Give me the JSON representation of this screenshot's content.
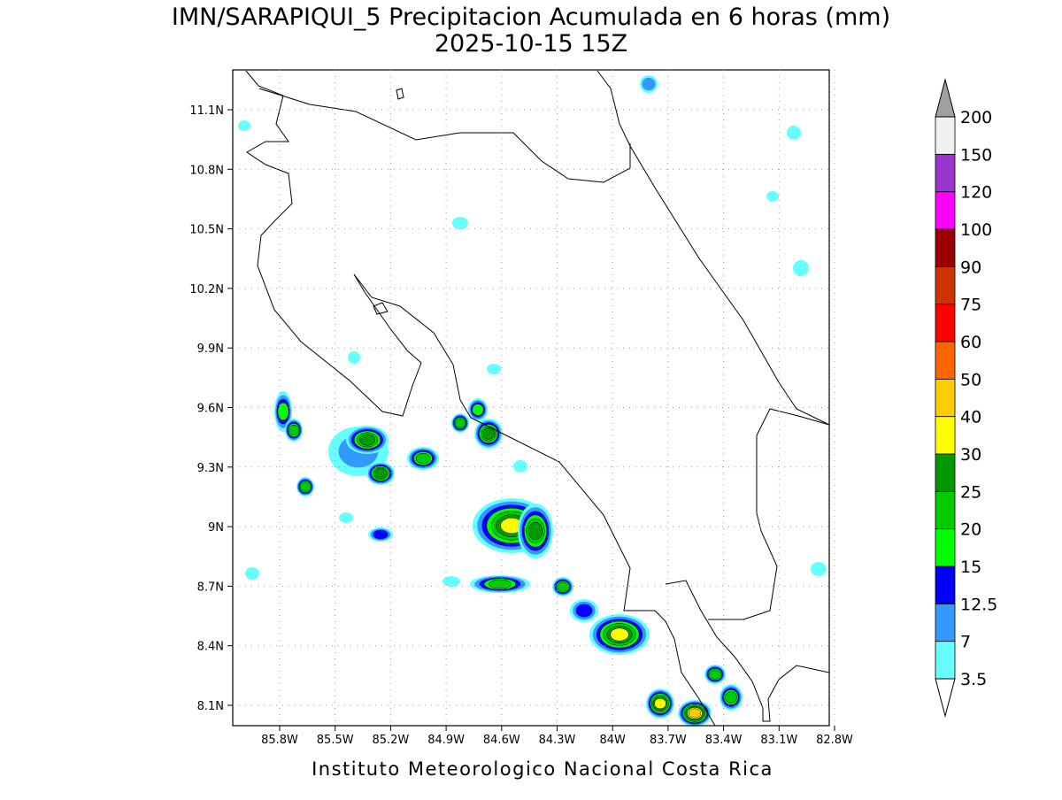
{
  "header": {
    "title": "IMN/SARAPIQUI_5 Precipitacion Acumulada en 6 horas (mm)",
    "subtitle": "2025-10-15 15Z"
  },
  "map": {
    "lat_labels": [
      "11.1N",
      "10.8N",
      "10.5N",
      "10.2N",
      "9.9N",
      "9.6N",
      "9.3N",
      "9N",
      "8.7N",
      "8.4N",
      "8.1N"
    ],
    "lon_labels": [
      "85.8W",
      "85.5W",
      "85.2W",
      "84.9W",
      "84.6W",
      "84.3W",
      "84W",
      "83.7W",
      "83.4W",
      "83.1W",
      "82.8W"
    ]
  },
  "colorbar": {
    "levels": [
      3.5,
      7,
      12.5,
      15,
      20,
      25,
      30,
      40,
      50,
      60,
      75,
      90,
      100,
      120,
      150,
      200
    ],
    "colors": [
      "#66ffff",
      "#3399ff",
      "#0000ff",
      "#00ff00",
      "#00cc00",
      "#009900",
      "#ffff00",
      "#ffcc00",
      "#ff6600",
      "#ff0000",
      "#cc3300",
      "#990000",
      "#ff00ff",
      "#9933cc",
      "#f0f0f0"
    ],
    "over_color": "#a0a0a0",
    "under_color": "#ffffff"
  },
  "footer": {
    "text": "Instituto Meteorologico Nacional Costa Rica"
  }
}
